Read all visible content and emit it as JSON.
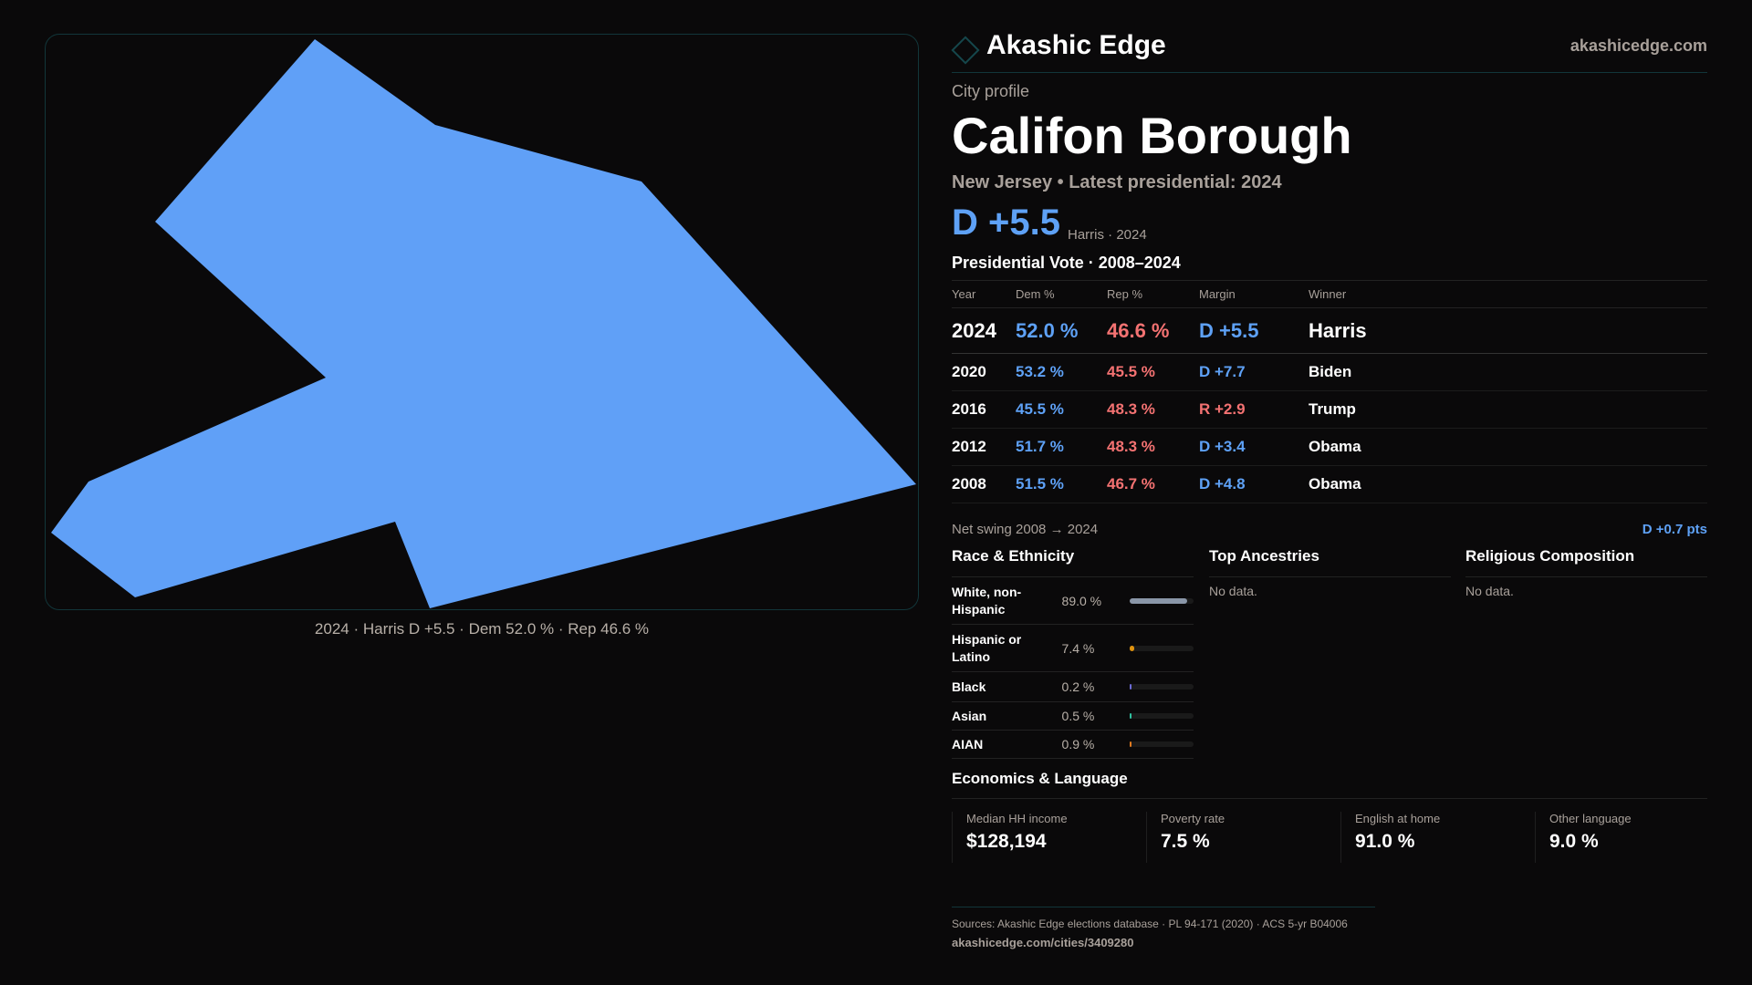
{
  "brand": {
    "name": "Akashic Edge",
    "site": "akashicedge.com"
  },
  "profile": {
    "kicker": "City profile",
    "name": "Califon Borough",
    "subtitle": "New Jersey • Latest presidential: 2024",
    "margin": "D +5.5",
    "margin_note": "Harris · 2024"
  },
  "map": {
    "caption": "2024 · Harris D +5.5 · Dem 52.0 % · Rep 46.6 %",
    "fill": "#60a0f7"
  },
  "votes": {
    "title": "Presidential Vote · 2008–2024",
    "headers": [
      "Year",
      "Dem %",
      "Rep %",
      "Margin",
      "Winner"
    ],
    "rows": [
      {
        "year": "2024",
        "dem": "52.0 %",
        "rep": "46.6 %",
        "margin": "D +5.5",
        "winner": "Harris",
        "party": "D"
      },
      {
        "year": "2020",
        "dem": "53.2 %",
        "rep": "45.5 %",
        "margin": "D +7.7",
        "winner": "Biden",
        "party": "D"
      },
      {
        "year": "2016",
        "dem": "45.5 %",
        "rep": "48.3 %",
        "margin": "R +2.9",
        "winner": "Trump",
        "party": "R"
      },
      {
        "year": "2012",
        "dem": "51.7 %",
        "rep": "48.3 %",
        "margin": "D +3.4",
        "winner": "Obama",
        "party": "D"
      },
      {
        "year": "2008",
        "dem": "51.5 %",
        "rep": "46.7 %",
        "margin": "D +4.8",
        "winner": "Obama",
        "party": "D"
      }
    ],
    "swing_label": "Net swing 2008 → 2024",
    "swing_value": "D +0.7 pts"
  },
  "race": {
    "title": "Race & Ethnicity",
    "rows": [
      {
        "label": "White, non-Hispanic",
        "value": "89.0 %",
        "pct": 89.0,
        "color": "#8a96a8"
      },
      {
        "label": "Hispanic or Latino",
        "value": "7.4 %",
        "pct": 7.4,
        "color": "#e0930f"
      },
      {
        "label": "Black",
        "value": "0.2 %",
        "pct": 0.2,
        "color": "#6b6bd6"
      },
      {
        "label": "Asian",
        "value": "0.5 %",
        "pct": 0.5,
        "color": "#2fc2a0"
      },
      {
        "label": "AIAN",
        "value": "0.9 %",
        "pct": 0.9,
        "color": "#e07a1f"
      }
    ]
  },
  "ancestries": {
    "title": "Top Ancestries",
    "empty": "No data."
  },
  "religion": {
    "title": "Religious Composition",
    "empty": "No data."
  },
  "econ": {
    "title": "Economics & Language",
    "stats": [
      {
        "label": "Median HH income",
        "value": "$128,194"
      },
      {
        "label": "Poverty rate",
        "value": "7.5 %"
      },
      {
        "label": "English at home",
        "value": "91.0 %"
      },
      {
        "label": "Other language",
        "value": "9.0 %"
      }
    ]
  },
  "footer": {
    "sources": "Sources: Akashic Edge elections database · PL 94-171 (2020) · ACS 5-yr B04006",
    "url": "akashicedge.com/cities/3409280"
  }
}
